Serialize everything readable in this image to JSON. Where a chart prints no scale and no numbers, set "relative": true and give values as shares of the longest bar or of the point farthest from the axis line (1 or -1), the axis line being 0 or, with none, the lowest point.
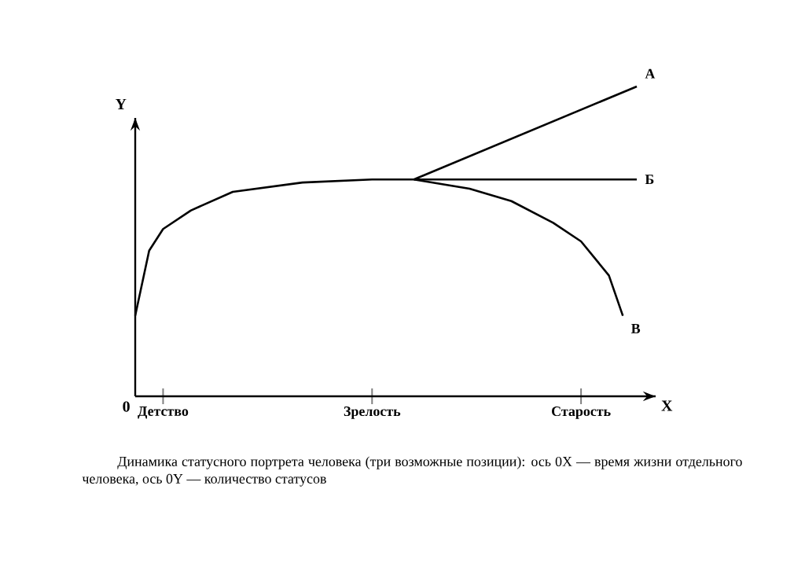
{
  "chart_data": {
    "type": "line",
    "relative": true,
    "xlabel": "X",
    "ylabel": "Y",
    "categories": [
      null,
      null,
      "Детство",
      null,
      null,
      null,
      null,
      null,
      null,
      null,
      null,
      null,
      null,
      null,
      null,
      null,
      null,
      "Зрелость",
      null,
      null,
      null,
      null,
      null,
      null,
      null,
      null,
      null,
      null,
      null,
      null,
      null,
      null,
      "Старость",
      null,
      null,
      null,
      null
    ],
    "series": [
      {
        "name": "А",
        "color": "#000000",
        "values": [
          null,
          null,
          null,
          null,
          null,
          null,
          null,
          null,
          null,
          null,
          null,
          null,
          null,
          null,
          null,
          null,
          null,
          null,
          null,
          null,
          0.7,
          null,
          null,
          null,
          null,
          null,
          null,
          null,
          null,
          null,
          null,
          null,
          null,
          null,
          null,
          null,
          1.0
        ]
      },
      {
        "name": "Б",
        "color": "#000000",
        "values": [
          null,
          null,
          null,
          null,
          null,
          null,
          null,
          null,
          null,
          null,
          null,
          null,
          null,
          null,
          null,
          null,
          null,
          null,
          null,
          null,
          0.7,
          null,
          null,
          null,
          null,
          null,
          null,
          null,
          null,
          null,
          null,
          null,
          null,
          null,
          null,
          null,
          0.7
        ]
      },
      {
        "name": "В",
        "color": "#000000",
        "values": [
          0.26,
          0.47,
          0.54,
          null,
          0.6,
          null,
          null,
          0.66,
          null,
          null,
          null,
          null,
          0.69,
          null,
          null,
          null,
          null,
          0.7,
          null,
          null,
          0.7,
          null,
          null,
          null,
          0.67,
          null,
          null,
          0.63,
          null,
          null,
          0.56,
          null,
          0.5,
          null,
          0.39,
          0.26,
          null
        ]
      }
    ],
    "annotations": [
      "0",
      "Динамика статусного портрета человека (три возможные позиции): ось 0X — время жизни отдельного человека, ось 0Y — количество статусов"
    ]
  }
}
